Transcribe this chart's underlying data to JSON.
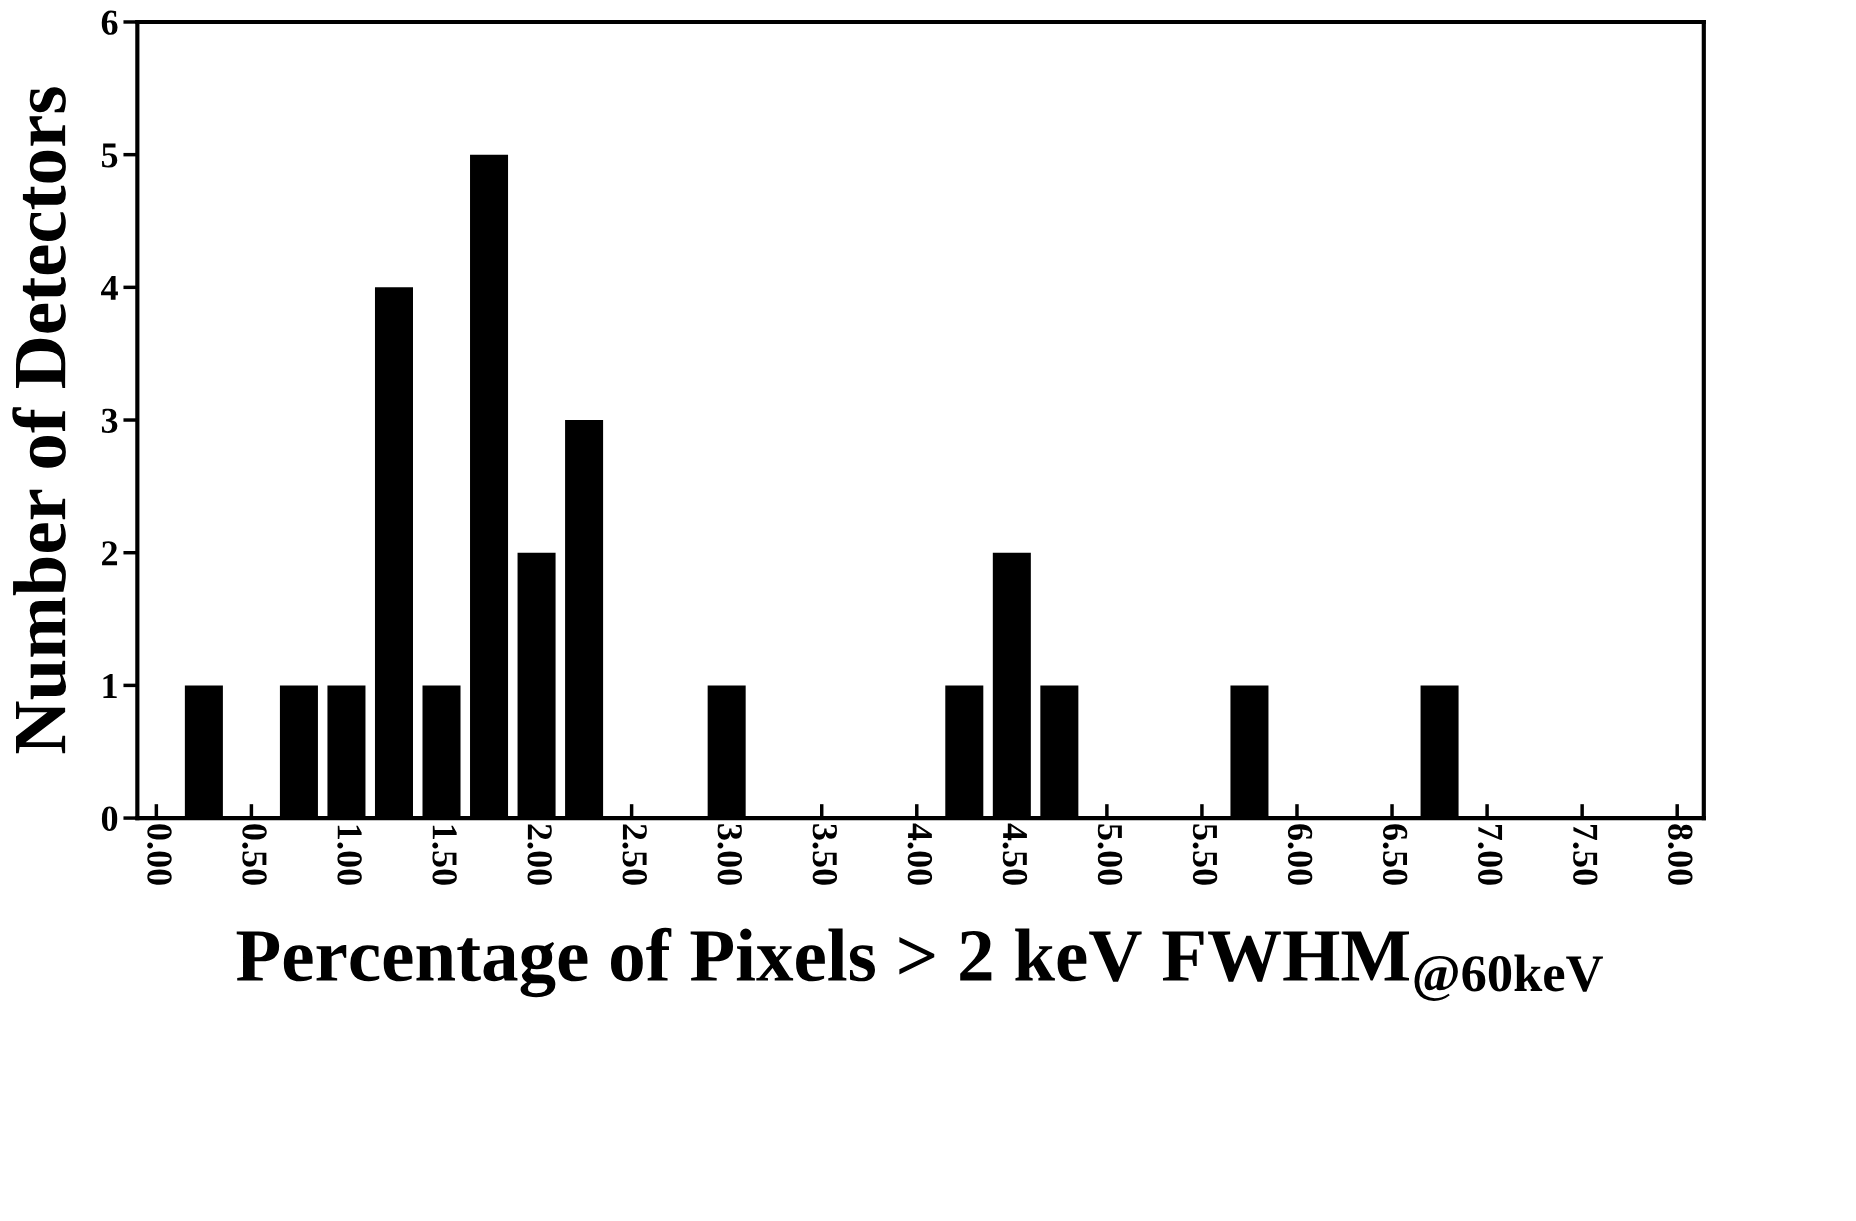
{
  "chart_data": {
    "type": "bar",
    "xlabel": "Percentage of Pixels > 2 keV FWHM$_{@60keV}$",
    "ylabel": "Number of Detectors",
    "x": [
      0.25,
      0.75,
      1.0,
      1.25,
      1.5,
      1.75,
      2.0,
      2.25,
      3.0,
      4.25,
      4.5,
      4.75,
      5.75,
      6.75
    ],
    "values": [
      1,
      1,
      1,
      4,
      1,
      5,
      2,
      3,
      1,
      1,
      2,
      1,
      1,
      1
    ],
    "color": "#000000",
    "xlim": [
      -0.1,
      8.14
    ],
    "ylim": [
      0,
      6
    ],
    "xticks": [
      {
        "value": 0,
        "label": "0.00"
      },
      {
        "value": 0.5,
        "label": "0.50"
      },
      {
        "value": 1,
        "label": "1.00"
      },
      {
        "value": 1.5,
        "label": "1.50"
      },
      {
        "value": 2,
        "label": "2.00"
      },
      {
        "value": 2.5,
        "label": "2.50"
      },
      {
        "value": 3,
        "label": "3.00"
      },
      {
        "value": 3.5,
        "label": "3.50"
      },
      {
        "value": 4,
        "label": "4.00"
      },
      {
        "value": 4.5,
        "label": "4.50"
      },
      {
        "value": 5,
        "label": "5.00"
      },
      {
        "value": 5.5,
        "label": "5.50"
      },
      {
        "value": 6,
        "label": "6.00"
      },
      {
        "value": 6.5,
        "label": "6.50"
      },
      {
        "value": 7,
        "label": "7.00"
      },
      {
        "value": 7.5,
        "label": "7.50"
      },
      {
        "value": 8,
        "label": "8.00"
      }
    ],
    "yticks": [
      0,
      1,
      2,
      3,
      4,
      5,
      6
    ],
    "grid": false
  }
}
